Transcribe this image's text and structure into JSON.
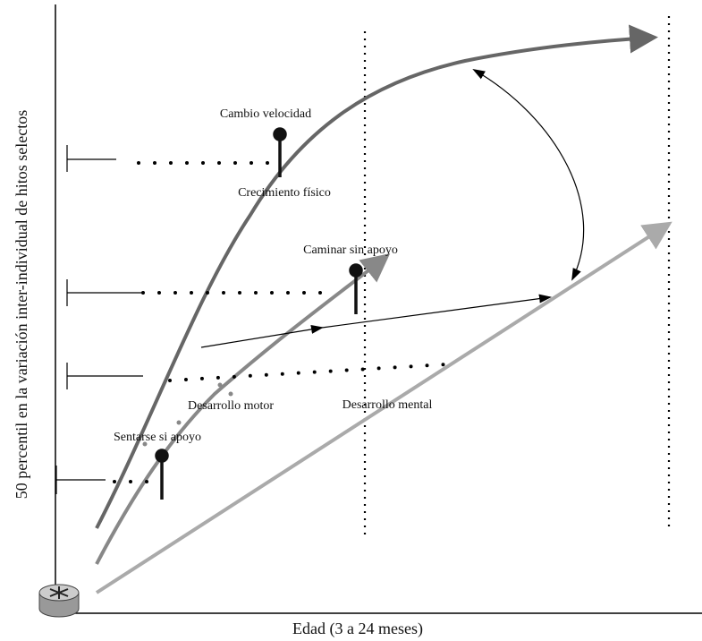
{
  "axes": {
    "y_label": "50 percentil en la variación inter-individual de hitos selectos",
    "x_label": "Edad (3 a 24 meses)"
  },
  "labels": {
    "speed_change": "Cambio velocidad",
    "physical_growth": "Crecimiento físico",
    "walking": "Caminar sin apoyo",
    "motor": "Desarrollo motor",
    "mental": "Desarrollo mental",
    "sitting": "Sentarse si apoyo"
  }
}
